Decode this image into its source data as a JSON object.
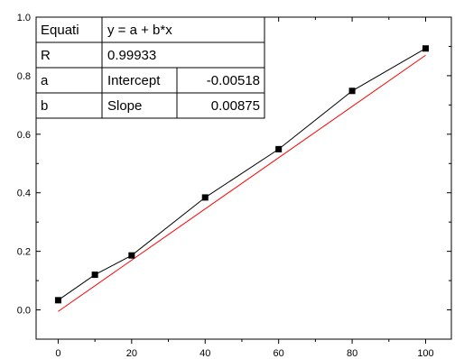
{
  "chart_data": {
    "type": "scatter",
    "title": "",
    "xlabel": "",
    "ylabel": "",
    "xlim": [
      -6,
      107
    ],
    "ylim": [
      -0.1,
      1.0
    ],
    "x_ticks": [
      {
        "value": 0,
        "label": "0"
      },
      {
        "value": 20,
        "label": "20"
      },
      {
        "value": 40,
        "label": "40"
      },
      {
        "value": 60,
        "label": "60"
      },
      {
        "value": 80,
        "label": "80"
      },
      {
        "value": 100,
        "label": "100"
      }
    ],
    "y_ticks": [
      {
        "value": 0.0,
        "label": "0.0"
      },
      {
        "value": 0.2,
        "label": "0.2"
      },
      {
        "value": 0.4,
        "label": "0.4"
      },
      {
        "value": 0.6,
        "label": "0.6"
      },
      {
        "value": 0.8,
        "label": "0.8"
      },
      {
        "value": 1.0,
        "label": "1.0"
      }
    ],
    "grid": false,
    "series": [
      {
        "color": "#000000",
        "marker": "square",
        "x": [
          0,
          10,
          20,
          40,
          60,
          80,
          100
        ],
        "y": [
          0.033,
          0.12,
          0.186,
          0.384,
          0.549,
          0.748,
          0.893
        ]
      }
    ],
    "fit": {
      "color": "#ff0000",
      "intercept": -0.00518,
      "slope": 0.00875,
      "x_range": [
        0,
        100
      ]
    },
    "fit_table": {
      "placement": "top-left",
      "rows": [
        [
          "Equati",
          "y = a + b*x",
          ""
        ],
        [
          "R",
          "0.99933",
          ""
        ],
        [
          "a",
          "Intercept",
          "-0.00518"
        ],
        [
          "b",
          "Slope",
          "0.00875"
        ]
      ]
    }
  }
}
